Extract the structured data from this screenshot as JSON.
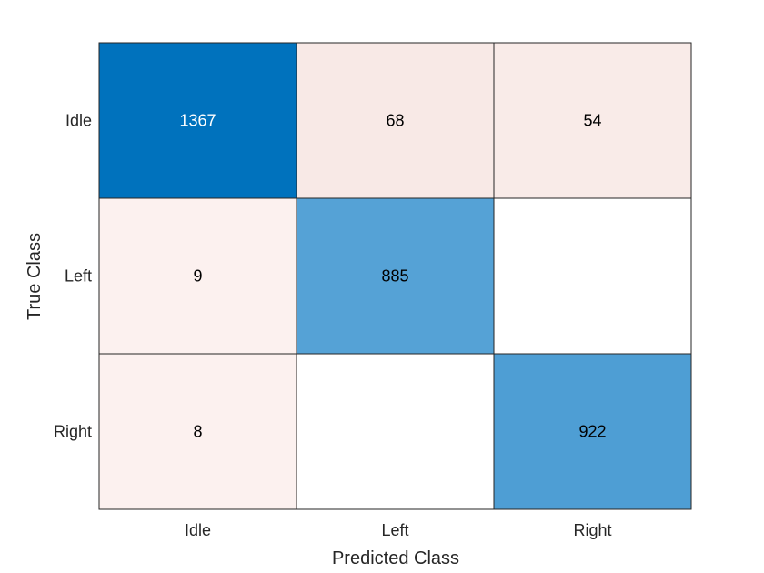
{
  "chart_data": {
    "type": "heatmap",
    "title": "",
    "xlabel": "Predicted Class",
    "ylabel": "True Class",
    "x_categories": [
      "Idle",
      "Left",
      "Right"
    ],
    "y_categories": [
      "Idle",
      "Left",
      "Right"
    ],
    "matrix": [
      [
        1367,
        68,
        54
      ],
      [
        9,
        885,
        null
      ],
      [
        8,
        null,
        922
      ]
    ],
    "colors": {
      "diagonal_max": "#0072bd",
      "diagonal_low": "#55a2d6",
      "off_diagonal_low": "#fcf1ef",
      "off_diagonal_high": "#f8e9e6",
      "empty": "#ffffff",
      "grid_line": "#262626",
      "text_on_dark": "#ffffff",
      "text_on_light": "#000000",
      "label_color": "#262626"
    },
    "grid": true,
    "legend": "none"
  }
}
